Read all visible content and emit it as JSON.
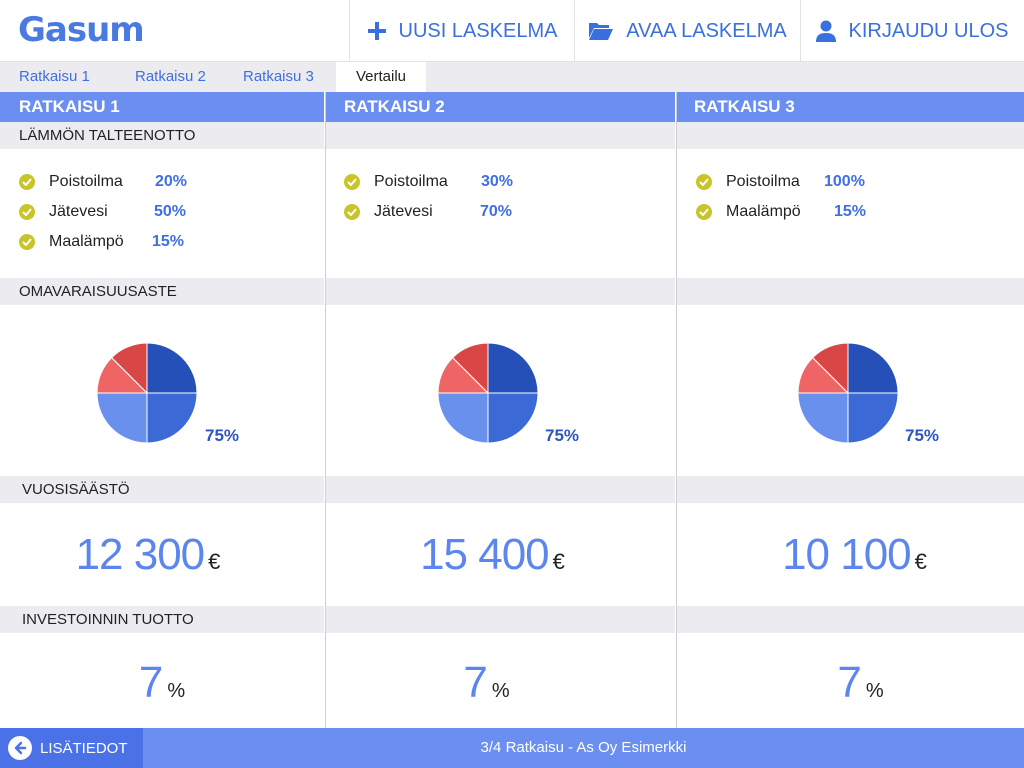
{
  "header": {
    "logo": "Gasum",
    "new_calc": "UUSI LASKELMA",
    "open_calc": "AVAA LASKELMA",
    "logout": "KIRJAUDU ULOS"
  },
  "tabs": [
    "Ratkaisu 1",
    "Ratkaisu 2",
    "Ratkaisu 3",
    "Vertailu"
  ],
  "active_tab": "Vertailu",
  "sections": {
    "heat": "LÄMMÖN TALTEENOTTO",
    "self": "OMAVARAISUUSASTE",
    "saving": "VUOSISÄÄSTÖ",
    "roi": "INVESTOINNIN TUOTTO"
  },
  "solutions": [
    {
      "title": "RATKAISU 1",
      "heat": [
        {
          "label": "Poistoilma",
          "value": "20%"
        },
        {
          "label": "Jätevesi",
          "value": "50%"
        },
        {
          "label": "Maalämpö",
          "value": "15%"
        }
      ],
      "self_pct": "75%",
      "saving": "12 300",
      "saving_unit": "€",
      "roi": "7",
      "roi_unit": "%"
    },
    {
      "title": "RATKAISU 2",
      "heat": [
        {
          "label": "Poistoilma",
          "value": "30%"
        },
        {
          "label": "Jätevesi",
          "value": "70%"
        }
      ],
      "self_pct": "75%",
      "saving": "15 400",
      "saving_unit": "€",
      "roi": "7",
      "roi_unit": "%"
    },
    {
      "title": "RATKAISU 3",
      "heat": [
        {
          "label": "Poistoilma",
          "value": "100%"
        },
        {
          "label": "Maalämpö",
          "value": "15%"
        }
      ],
      "self_pct": "75%",
      "saving": "10 100",
      "saving_unit": "€",
      "roi": "7",
      "roi_unit": "%"
    }
  ],
  "pie": {
    "self_share": 0.75,
    "colors": {
      "blue_dark": "#2450b8",
      "blue_mid": "#3b6ad6",
      "blue_light": "#6a90ee",
      "red_light": "#ef6464",
      "red_dark": "#d94646"
    }
  },
  "footer": {
    "info_label": "LISÄTIEDOT",
    "status": "3/4 Ratkaisu  -  As Oy Esimerkki"
  },
  "colors": {
    "brand": "#4a7ae0",
    "accent": "#6b8ff0",
    "check": "#c8c42a"
  }
}
